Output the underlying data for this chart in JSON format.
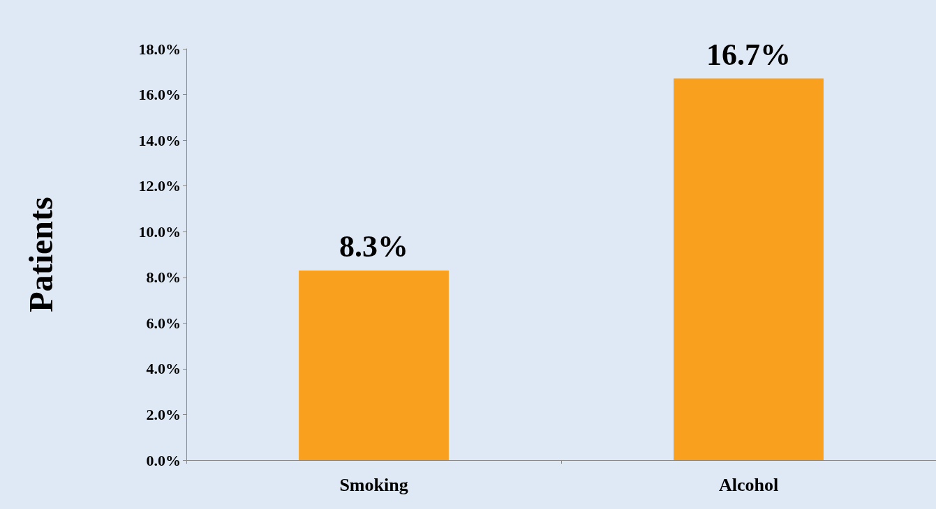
{
  "chart_data": {
    "type": "bar",
    "ylabel": "Patients",
    "categories": [
      "Smoking",
      "Alcohol"
    ],
    "values": [
      8.3,
      16.7
    ],
    "color": "#f9a01e",
    "value_labels": [
      "8.3%",
      "16.7%"
    ],
    "ylim": [
      0,
      18
    ],
    "yticks": [
      {
        "value": 0,
        "label": "0.0%"
      },
      {
        "value": 2,
        "label": "2.0%"
      },
      {
        "value": 4,
        "label": "4.0%"
      },
      {
        "value": 6,
        "label": "6.0%"
      },
      {
        "value": 8,
        "label": "8.0%"
      },
      {
        "value": 10,
        "label": "10.0%"
      },
      {
        "value": 12,
        "label": "12.0%"
      },
      {
        "value": 14,
        "label": "14.0%"
      },
      {
        "value": 16,
        "label": "16.0%"
      },
      {
        "value": 18,
        "label": "18.0%"
      }
    ],
    "grid": false
  }
}
